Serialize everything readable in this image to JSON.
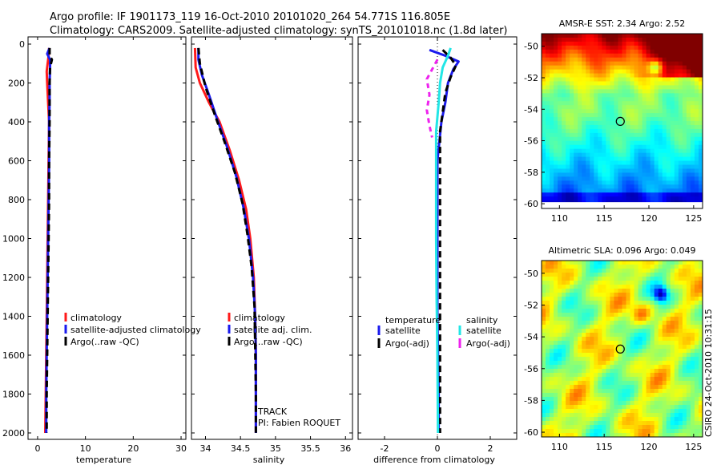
{
  "figure": {
    "title_line1": "Argo profile: IF 1901173_119 16-Oct-2010 20101020_264 54.771S 116.805E",
    "title_line2": "Climatology: CARS2009. Satellite-adjusted climatology: synTS_20101018.nc (1.8d later)",
    "side_caption": "CSIRO 24-Oct-2010 10:31:15"
  },
  "colors": {
    "red": "#ff1a1a",
    "blue": "#1a1aee",
    "black": "#000000",
    "cyan": "#22e6e6",
    "magenta": "#ee22ee"
  },
  "chart_data": [
    {
      "type": "line",
      "name": "temperature-profile",
      "xlabel": "temperature",
      "ylabel": "",
      "xlim": [
        -2,
        31
      ],
      "ylim": [
        0,
        2050
      ],
      "x_ticks": [
        0,
        10,
        20,
        30
      ],
      "y_ticks": [
        0,
        200,
        400,
        600,
        800,
        1000,
        1200,
        1400,
        1600,
        1800,
        2000
      ],
      "legend": {
        "placement": "lower-right",
        "entries": [
          "climatology",
          "satellite-adjusted climatology",
          "Argo(..raw -QC)"
        ]
      },
      "series": [
        {
          "name": "climatology",
          "color": "red",
          "dash": "",
          "points": [
            [
              2.4,
              20
            ],
            [
              2.3,
              60
            ],
            [
              2.1,
              100
            ],
            [
              1.9,
              140
            ],
            [
              2.0,
              200
            ],
            [
              2.2,
              300
            ],
            [
              2.4,
              400
            ],
            [
              2.3,
              600
            ],
            [
              2.2,
              800
            ],
            [
              2.1,
              1000
            ],
            [
              2.0,
              1200
            ],
            [
              1.9,
              1400
            ],
            [
              1.8,
              1600
            ],
            [
              1.7,
              1800
            ],
            [
              1.6,
              2000
            ]
          ]
        },
        {
          "name": "satellite-adjusted climatology",
          "color": "blue",
          "dash": "",
          "points": [
            [
              2.5,
              20
            ],
            [
              2.0,
              50
            ],
            [
              2.6,
              80
            ],
            [
              2.6,
              120
            ],
            [
              2.5,
              200
            ],
            [
              2.5,
              300
            ],
            [
              2.4,
              400
            ],
            [
              2.4,
              600
            ],
            [
              2.3,
              800
            ],
            [
              2.2,
              1000
            ],
            [
              2.1,
              1200
            ],
            [
              2.0,
              1400
            ],
            [
              1.9,
              1600
            ],
            [
              1.8,
              1800
            ],
            [
              1.8,
              2000
            ]
          ]
        },
        {
          "name": "Argo(..raw -QC)",
          "color": "black",
          "dash": "8,5",
          "points": [
            [
              2.5,
              20
            ],
            [
              2.5,
              60
            ],
            [
              3.0,
              80
            ],
            [
              2.6,
              120
            ],
            [
              2.5,
              200
            ],
            [
              2.5,
              300
            ],
            [
              2.5,
              400
            ],
            [
              2.4,
              600
            ],
            [
              2.4,
              800
            ],
            [
              2.3,
              1000
            ],
            [
              2.2,
              1200
            ],
            [
              2.1,
              1400
            ],
            [
              2.0,
              1600
            ],
            [
              1.9,
              1800
            ],
            [
              1.9,
              2000
            ]
          ]
        }
      ]
    },
    {
      "type": "line",
      "name": "salinity-profile",
      "xlabel": "salinity",
      "ylabel": "",
      "xlim": [
        33.8,
        36.1
      ],
      "ylim": [
        0,
        2050
      ],
      "x_ticks": [
        34,
        34.5,
        35,
        35.5,
        36
      ],
      "y_ticks": [
        0,
        200,
        400,
        600,
        800,
        1000,
        1200,
        1400,
        1600,
        1800,
        2000
      ],
      "legend": {
        "placement": "lower-right",
        "entries": [
          "climatology",
          "satellite adj. clim.",
          "Argo(..raw -QC)"
        ]
      },
      "annotation": [
        "TRACK",
        "PI: Fabien ROQUET"
      ],
      "series": [
        {
          "name": "climatology",
          "color": "red",
          "dash": "",
          "points": [
            [
              33.85,
              20
            ],
            [
              33.86,
              120
            ],
            [
              33.92,
              200
            ],
            [
              34.05,
              300
            ],
            [
              34.2,
              400
            ],
            [
              34.35,
              550
            ],
            [
              34.48,
              700
            ],
            [
              34.58,
              850
            ],
            [
              34.64,
              1000
            ],
            [
              34.69,
              1200
            ],
            [
              34.71,
              1400
            ],
            [
              34.72,
              1600
            ],
            [
              34.72,
              1800
            ],
            [
              34.72,
              2000
            ]
          ]
        },
        {
          "name": "satellite adj. clim.",
          "color": "blue",
          "dash": "",
          "points": [
            [
              33.9,
              20
            ],
            [
              33.9,
              80
            ],
            [
              33.95,
              160
            ],
            [
              34.05,
              260
            ],
            [
              34.16,
              380
            ],
            [
              34.3,
              520
            ],
            [
              34.44,
              680
            ],
            [
              34.55,
              850
            ],
            [
              34.62,
              1000
            ],
            [
              34.68,
              1200
            ],
            [
              34.71,
              1400
            ],
            [
              34.72,
              1600
            ],
            [
              34.72,
              1800
            ],
            [
              34.72,
              2000
            ]
          ]
        },
        {
          "name": "Argo(..raw -QC)",
          "color": "black",
          "dash": "8,5",
          "points": [
            [
              33.9,
              20
            ],
            [
              33.92,
              100
            ],
            [
              34.0,
              220
            ],
            [
              34.12,
              350
            ],
            [
              34.27,
              500
            ],
            [
              34.42,
              660
            ],
            [
              34.53,
              820
            ],
            [
              34.6,
              980
            ],
            [
              34.66,
              1150
            ],
            [
              34.7,
              1350
            ],
            [
              34.71,
              1550
            ],
            [
              34.72,
              1800
            ],
            [
              34.72,
              2000
            ]
          ]
        }
      ]
    },
    {
      "type": "line",
      "name": "difference-profile",
      "xlabel": "difference from climatology",
      "ylabel": "",
      "xlim": [
        -3,
        3
      ],
      "ylim": [
        0,
        2050
      ],
      "x_ticks": [
        -2,
        0,
        2
      ],
      "y_ticks": [
        0,
        200,
        400,
        600,
        800,
        1000,
        1200,
        1400,
        1600,
        1800,
        2000
      ],
      "legend": {
        "placement": "lower-right",
        "temperature_header": "temperature",
        "salinity_header": "salinity",
        "entries": [
          "satellite",
          "Argo(-adj)",
          "satellite",
          "Argo(-adj)"
        ]
      },
      "series": [
        {
          "name": "temperature satellite",
          "color": "blue",
          "dash": "",
          "points": [
            [
              -0.3,
              30
            ],
            [
              0.3,
              60
            ],
            [
              0.8,
              90
            ],
            [
              0.6,
              130
            ],
            [
              0.4,
              200
            ],
            [
              0.3,
              300
            ],
            [
              0.15,
              400
            ],
            [
              0.0,
              600
            ],
            [
              0.0,
              800
            ],
            [
              0.0,
              1000
            ],
            [
              0.0,
              1400
            ],
            [
              0.05,
              1800
            ],
            [
              0.05,
              2000
            ]
          ]
        },
        {
          "name": "temperature Argo(-adj)",
          "color": "black",
          "dash": "8,5",
          "points": [
            [
              0.2,
              30
            ],
            [
              0.5,
              70
            ],
            [
              0.7,
              110
            ],
            [
              0.5,
              170
            ],
            [
              0.3,
              250
            ],
            [
              0.2,
              350
            ],
            [
              0.1,
              450
            ],
            [
              0.1,
              700
            ],
            [
              0.1,
              1000
            ],
            [
              0.1,
              1400
            ],
            [
              0.1,
              1800
            ],
            [
              0.1,
              2000
            ]
          ]
        },
        {
          "name": "salinity satellite",
          "color": "cyan",
          "dash": "",
          "points": [
            [
              0.5,
              20
            ],
            [
              0.4,
              60
            ],
            [
              0.2,
              120
            ],
            [
              0.1,
              200
            ],
            [
              0.05,
              300
            ],
            [
              -0.05,
              450
            ],
            [
              -0.05,
              700
            ],
            [
              -0.05,
              1000
            ],
            [
              -0.03,
              1300
            ],
            [
              0.0,
              1600
            ],
            [
              0.02,
              2000
            ]
          ]
        },
        {
          "name": "salinity Argo(-adj)",
          "color": "magenta",
          "dash": "6,5",
          "points": [
            [
              0.0,
              80
            ],
            [
              -0.4,
              180
            ],
            [
              -0.3,
              260
            ],
            [
              -0.4,
              340
            ],
            [
              -0.3,
              420
            ],
            [
              -0.2,
              480
            ]
          ]
        }
      ]
    },
    {
      "type": "heatmap",
      "name": "amsr-e-sst-map",
      "title": "AMSR-E SST: 2.34 Argo: 2.52",
      "xlim": [
        108,
        126
      ],
      "ylim": [
        -60.3,
        -49.2
      ],
      "x_ticks": [
        110,
        115,
        120,
        125
      ],
      "y_ticks": [
        -50,
        -52,
        -54,
        -56,
        -58,
        -60
      ],
      "marker": {
        "lon": 116.8,
        "lat": -54.77
      }
    },
    {
      "type": "heatmap",
      "name": "altimetric-sla-map",
      "title": "Altimetric SLA: 0.096 Argo: 0.049",
      "xlim": [
        108,
        126
      ],
      "ylim": [
        -60.3,
        -49.2
      ],
      "x_ticks": [
        110,
        115,
        120,
        125
      ],
      "y_ticks": [
        -50,
        -52,
        -54,
        -56,
        -58,
        -60
      ],
      "marker": {
        "lon": 116.8,
        "lat": -54.77
      }
    }
  ]
}
